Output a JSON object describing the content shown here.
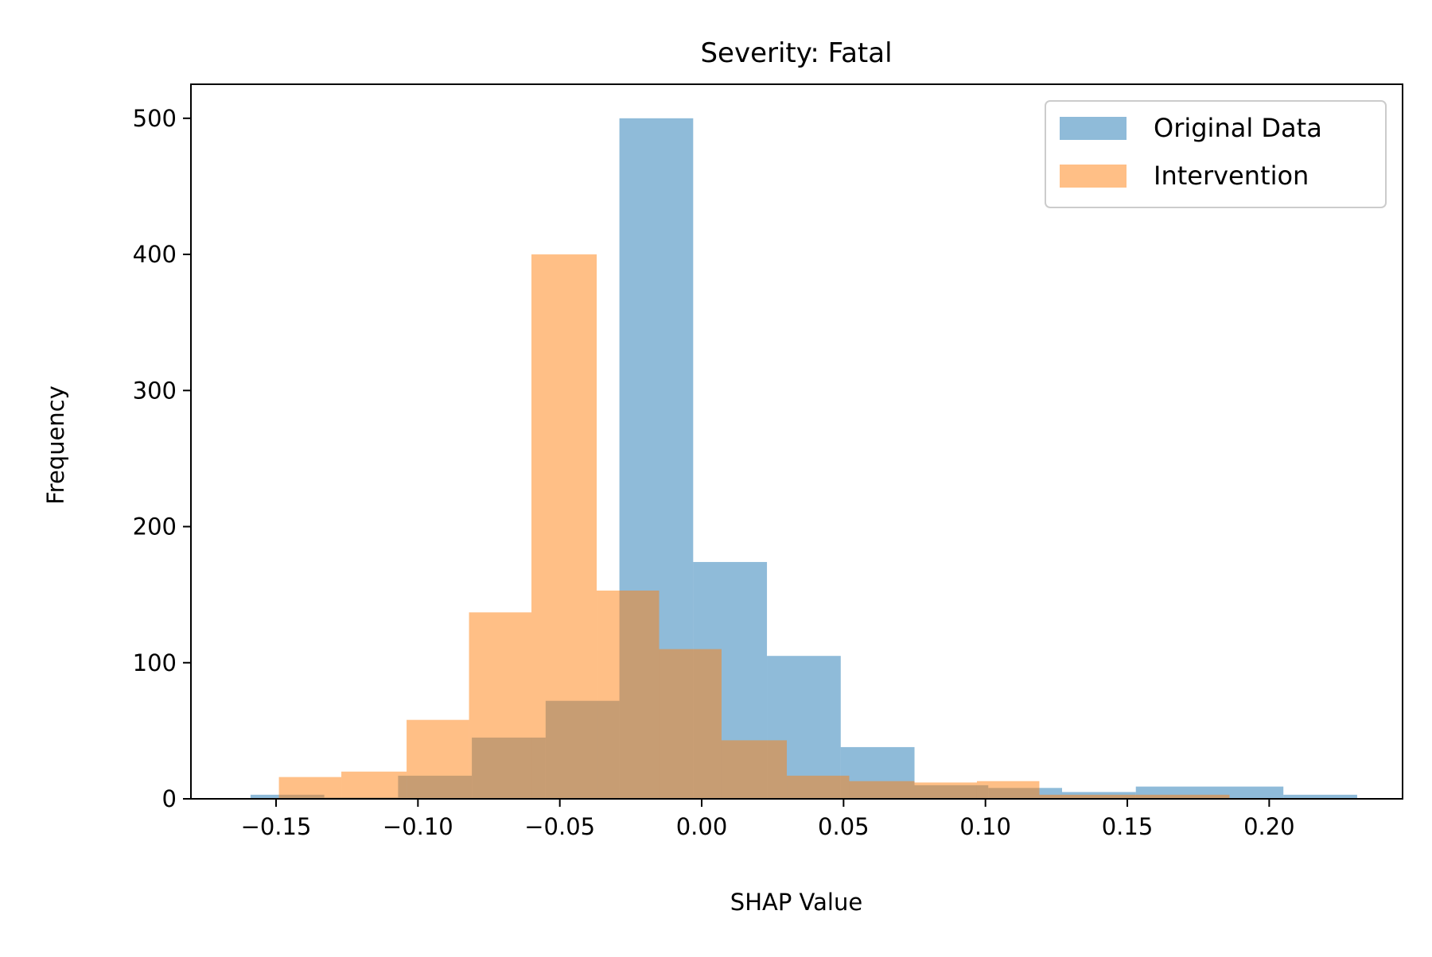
{
  "chart_data": {
    "type": "histogram",
    "title": "Severity: Fatal",
    "xlabel": "SHAP Value",
    "ylabel": "Frequency",
    "xlim": [
      -0.18,
      0.247
    ],
    "ylim": [
      0,
      525
    ],
    "xticks": [
      -0.15,
      -0.1,
      -0.05,
      0.0,
      0.05,
      0.1,
      0.15,
      0.2
    ],
    "xtick_labels": [
      "−0.15",
      "−0.10",
      "−0.05",
      "0.00",
      "0.05",
      "0.10",
      "0.15",
      "0.20"
    ],
    "yticks": [
      0,
      100,
      200,
      300,
      400,
      500
    ],
    "ytick_labels": [
      "0",
      "100",
      "200",
      "300",
      "400",
      "500"
    ],
    "grid": false,
    "legend_position": "top-right",
    "series": [
      {
        "name": "Original Data",
        "color": "#1f77b4",
        "alpha": 0.5,
        "bin_edges": [
          -0.159,
          -0.133,
          -0.107,
          -0.081,
          -0.055,
          -0.029,
          -0.003,
          0.023,
          0.049,
          0.075,
          0.101,
          0.127,
          0.153,
          0.179,
          0.205,
          0.231
        ],
        "counts": [
          3,
          1,
          17,
          45,
          72,
          500,
          174,
          105,
          38,
          10,
          8,
          5,
          9,
          9,
          3
        ]
      },
      {
        "name": "Intervention",
        "color": "#ff7f0e",
        "alpha": 0.5,
        "bin_edges": [
          -0.149,
          -0.127,
          -0.104,
          -0.082,
          -0.06,
          -0.037,
          -0.015,
          0.007,
          0.03,
          0.052,
          0.075,
          0.097,
          0.119,
          0.141,
          0.164,
          0.186
        ],
        "counts": [
          16,
          20,
          58,
          137,
          400,
          153,
          110,
          43,
          17,
          13,
          12,
          13,
          3,
          3,
          3
        ]
      }
    ]
  }
}
